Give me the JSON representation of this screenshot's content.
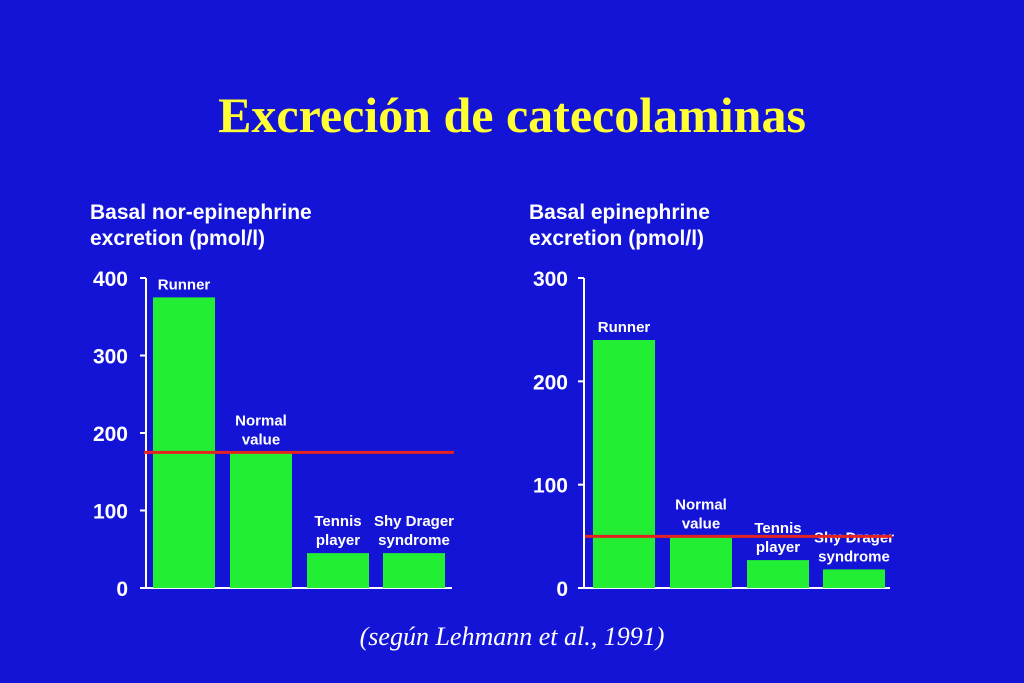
{
  "title": "Excreción de catecolaminas",
  "source": "(según Lehmann et al., 1991)",
  "colors": {
    "background": "#1414d6",
    "title": "#ffff33",
    "bar": "#22ee33",
    "reference_line": "#e52222",
    "text": "#ffffff"
  },
  "chart_data": [
    {
      "type": "bar",
      "title_lines": [
        "Basal nor-epinephrine",
        "excretion (pmol/l)"
      ],
      "yticks": [
        0,
        100,
        200,
        300,
        400
      ],
      "ylim": [
        0,
        400
      ],
      "bars": [
        {
          "label_lines": [
            "Runner"
          ],
          "value": 375
        },
        {
          "label_lines": [
            "Normal",
            "value"
          ],
          "value": 175
        },
        {
          "label_lines": [
            "Tennis",
            "player"
          ],
          "value": 45
        },
        {
          "label_lines": [
            "Shy Drager",
            "syndrome"
          ],
          "value": 45
        }
      ],
      "reference_line": 175
    },
    {
      "type": "bar",
      "title_lines": [
        "Basal epinephrine",
        "excretion (pmol/l)"
      ],
      "yticks": [
        0,
        100,
        200,
        300
      ],
      "ylim": [
        0,
        300
      ],
      "bars": [
        {
          "label_lines": [
            "Runner"
          ],
          "value": 240
        },
        {
          "label_lines": [
            "Normal",
            "value"
          ],
          "value": 50
        },
        {
          "label_lines": [
            "Tennis",
            "player"
          ],
          "value": 27
        },
        {
          "label_lines": [
            "Shy Drager",
            "syndrome"
          ],
          "value": 18
        }
      ],
      "reference_line": 50
    }
  ]
}
